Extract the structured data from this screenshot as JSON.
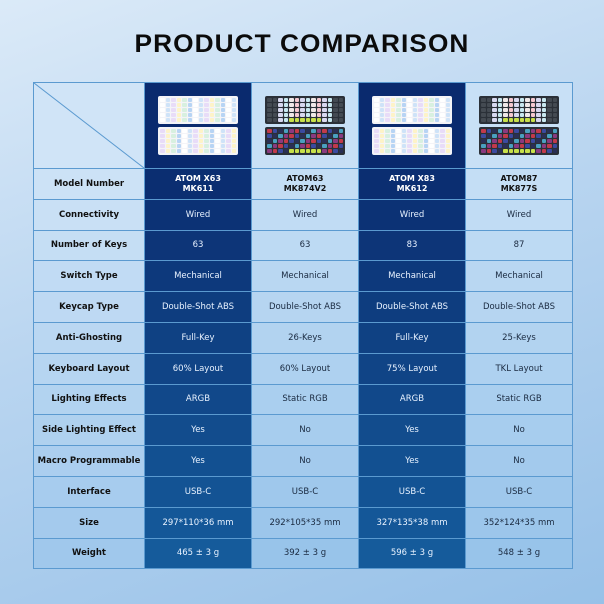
{
  "title": "PRODUCT COMPARISON",
  "colors": {
    "highlight_top": "#0a2a6e",
    "highlight_bottom": "#155b9b",
    "light_cell": "#b8d5ef",
    "border": "#5b9ad0"
  },
  "products": [
    {
      "model_line1": "ATOM X63",
      "model_line2": "MK611",
      "highlighted": true,
      "image": "white-blue-60-keyboard"
    },
    {
      "model_line1": "ATOM63",
      "model_line2": "MK874V2",
      "highlighted": false,
      "image": "dark-lime-60-keyboard"
    },
    {
      "model_line1": "ATOM X83",
      "model_line2": "MK612",
      "highlighted": true,
      "image": "white-blue-75-keyboard"
    },
    {
      "model_line1": "ATOM87",
      "model_line2": "MK877S",
      "highlighted": false,
      "image": "dark-lime-tkl-keyboard"
    }
  ],
  "model_label": "Model Number",
  "rows": [
    {
      "label": "Connectivity",
      "values": [
        "Wired",
        "Wired",
        "Wired",
        "Wired"
      ]
    },
    {
      "label": "Number of Keys",
      "values": [
        "63",
        "63",
        "83",
        "87"
      ]
    },
    {
      "label": "Switch Type",
      "values": [
        "Mechanical",
        "Mechanical",
        "Mechanical",
        "Mechanical"
      ]
    },
    {
      "label": "Keycap Type",
      "values": [
        "Double-Shot ABS",
        "Double-Shot ABS",
        "Double-Shot ABS",
        "Double-Shot ABS"
      ]
    },
    {
      "label": "Anti-Ghosting",
      "values": [
        "Full-Key",
        "26-Keys",
        "Full-Key",
        "25-Keys"
      ]
    },
    {
      "label": "Keyboard Layout",
      "values": [
        "60% Layout",
        "60% Layout",
        "75% Layout",
        "TKL Layout"
      ]
    },
    {
      "label": "Lighting Effects",
      "values": [
        "ARGB",
        "Static RGB",
        "ARGB",
        "Static RGB"
      ]
    },
    {
      "label": "Side Lighting Effect",
      "values": [
        "Yes",
        "No",
        "Yes",
        "No"
      ]
    },
    {
      "label": "Macro Programmable",
      "values": [
        "Yes",
        "No",
        "Yes",
        "No"
      ]
    },
    {
      "label": "Interface",
      "values": [
        "USB-C",
        "USB-C",
        "USB-C",
        "USB-C"
      ]
    },
    {
      "label": "Size",
      "values": [
        "297*110*36 mm",
        "292*105*35 mm",
        "327*135*38 mm",
        "352*124*35 mm"
      ]
    },
    {
      "label": "Weight",
      "values": [
        "465 ± 3 g",
        "392 ± 3 g",
        "596 ± 3 g",
        "548 ± 3 g"
      ]
    }
  ]
}
